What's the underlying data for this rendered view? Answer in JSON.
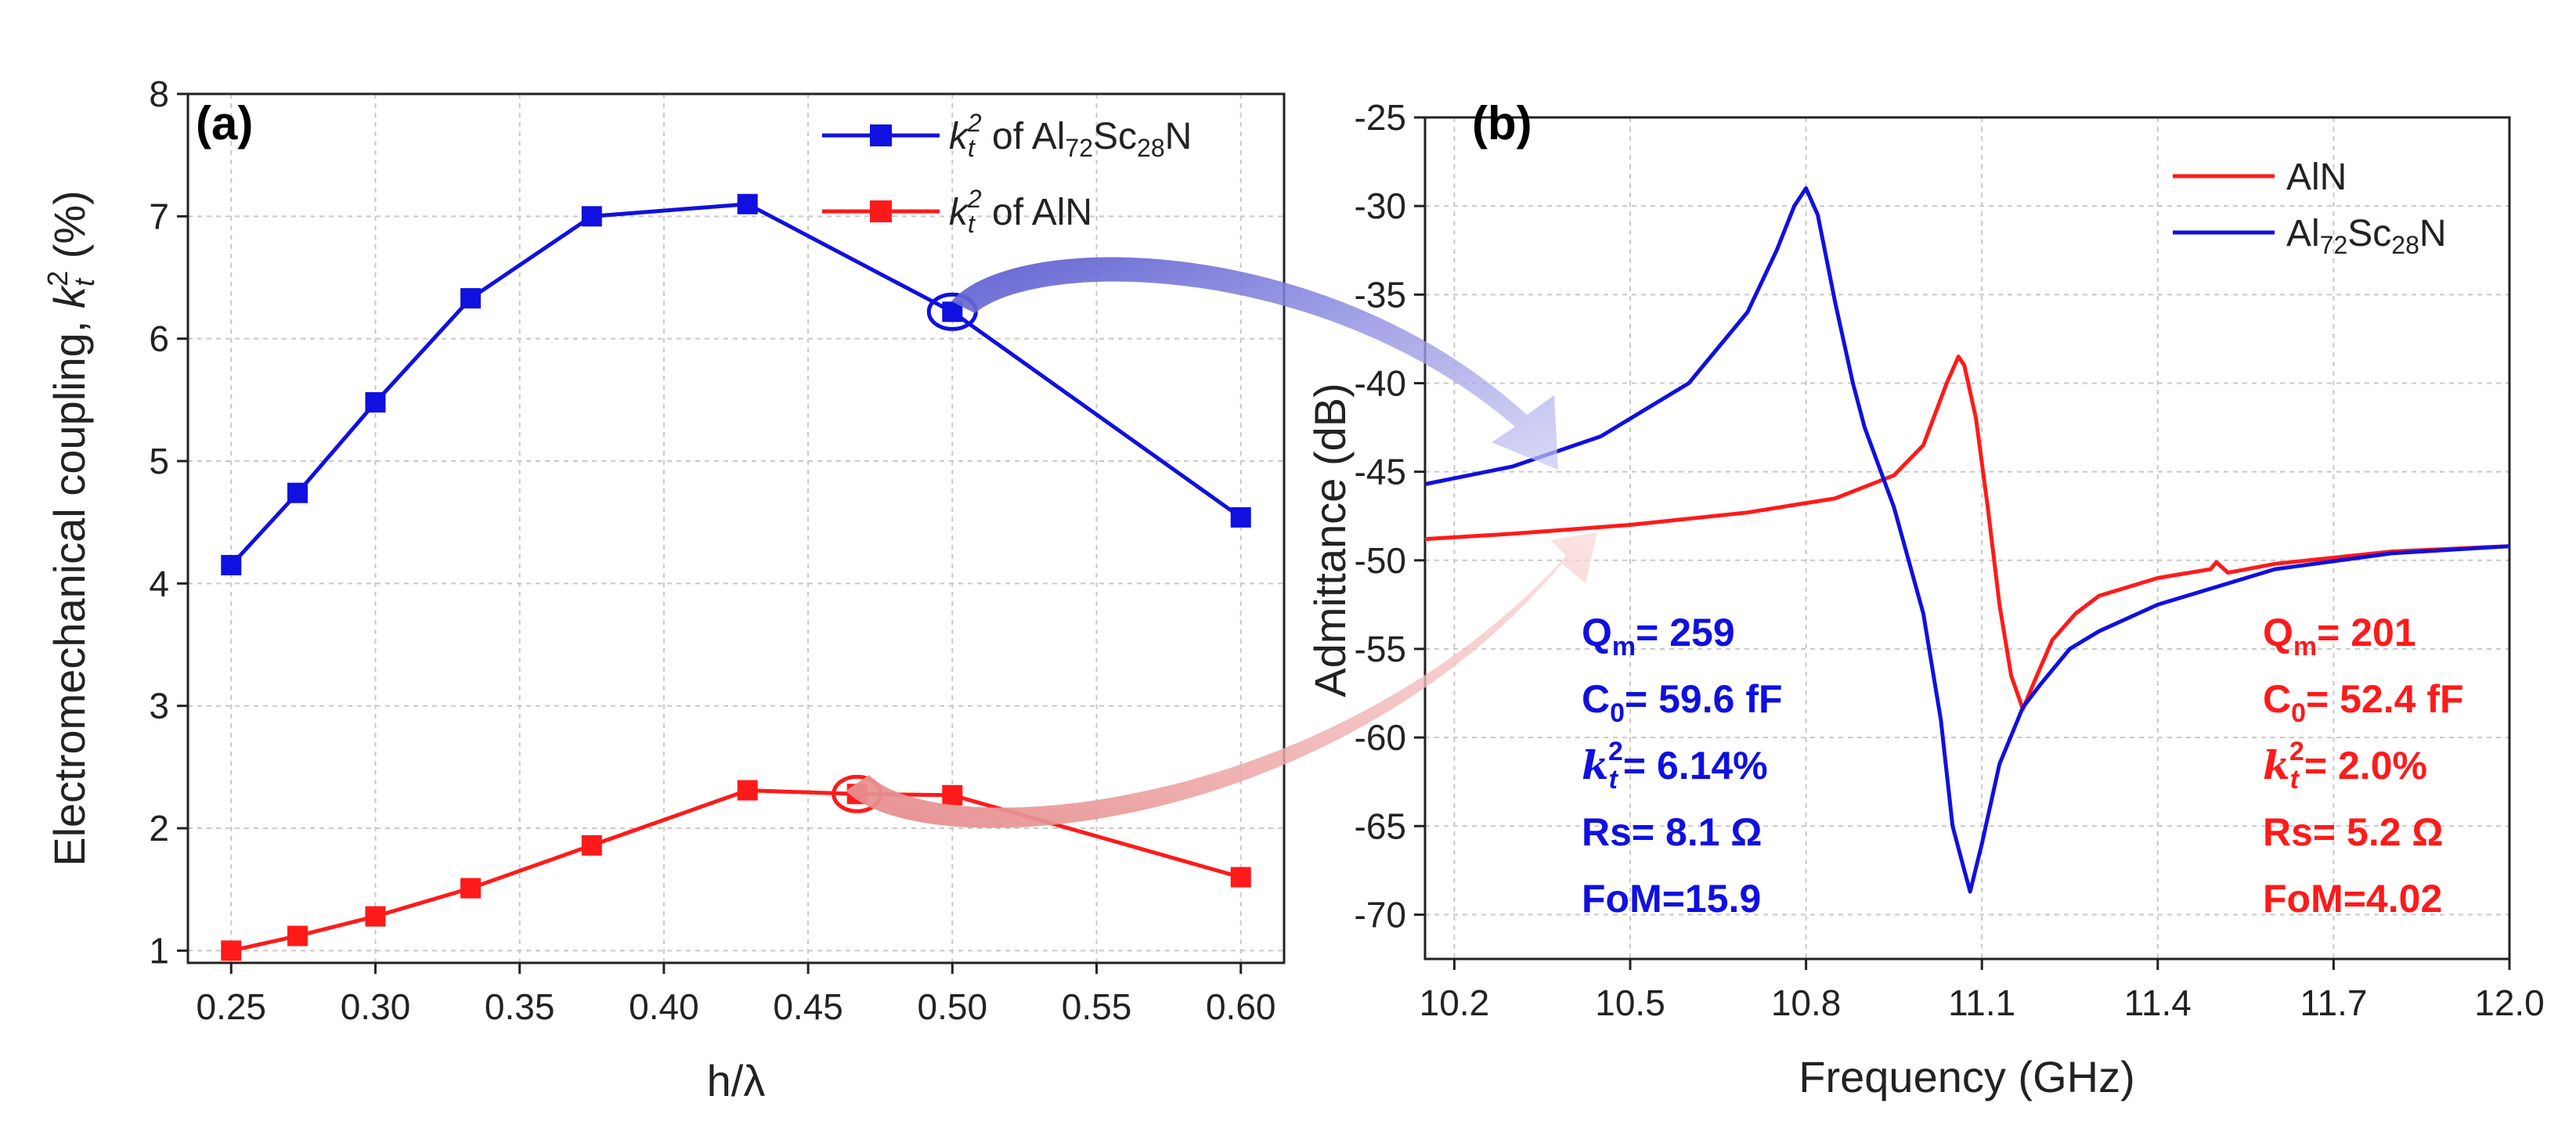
{
  "colors": {
    "blue": "#1010e0",
    "red": "#ff1a1a",
    "text": "#222222"
  },
  "chart_data": [
    {
      "type": "line",
      "panel_label": "(a)",
      "xlabel": "h/λ",
      "ylabel_text": "Electromechanical coupling, ",
      "ylabel_k": "k",
      "ylabel_sub": "t",
      "ylabel_sup": "2",
      "ylabel_unit": " (%)",
      "xlim": [
        0.235,
        0.615
      ],
      "ylim": [
        0.9,
        8.0
      ],
      "xticks": [
        0.25,
        0.3,
        0.35,
        0.4,
        0.45,
        0.5,
        0.55,
        0.6
      ],
      "xtick_labels": [
        "0.25",
        "0.30",
        "0.35",
        "0.40",
        "0.45",
        "0.50",
        "0.55",
        "0.60"
      ],
      "yticks": [
        1,
        2,
        3,
        4,
        5,
        6,
        7,
        8
      ],
      "ytick_labels": [
        "1",
        "2",
        "3",
        "4",
        "5",
        "6",
        "7",
        "8"
      ],
      "series": [
        {
          "name": "k_t^2 of Al72Sc28N",
          "legend_k": "k",
          "legend_sub": "t",
          "legend_sup": "2",
          "legend_text": " of Al",
          "legend_n1": "72",
          "legend_sc": "Sc",
          "legend_n2": "28",
          "legend_end": "N",
          "color": "#1010e0",
          "x": [
            0.25,
            0.273,
            0.3,
            0.333,
            0.375,
            0.429,
            0.5,
            0.6
          ],
          "y": [
            4.15,
            4.74,
            5.48,
            6.33,
            7.0,
            7.1,
            6.22,
            4.54
          ]
        },
        {
          "name": "k_t^2 of AlN",
          "legend_k": "k",
          "legend_sub": "t",
          "legend_sup": "2",
          "legend_text": " of AlN",
          "color": "#ff1a1a",
          "x": [
            0.25,
            0.273,
            0.3,
            0.333,
            0.375,
            0.429,
            0.467,
            0.5,
            0.6
          ],
          "y": [
            1.0,
            1.12,
            1.28,
            1.51,
            1.86,
            2.31,
            2.28,
            2.27,
            1.6
          ]
        }
      ],
      "highlight_points": [
        {
          "series": 0,
          "x": 0.5,
          "y": 6.22
        },
        {
          "series": 1,
          "x": 0.467,
          "y": 2.28
        }
      ]
    },
    {
      "type": "line",
      "panel_label": "(b)",
      "xlabel": "Frequency (GHz)",
      "ylabel": "Admittance (dB)",
      "xlim": [
        10.15,
        12.0
      ],
      "ylim": [
        -72.5,
        -25
      ],
      "xticks": [
        10.2,
        10.5,
        10.8,
        11.1,
        11.4,
        11.7,
        12.0
      ],
      "xtick_labels": [
        "10.2",
        "10.5",
        "10.8",
        "11.1",
        "11.4",
        "11.7",
        "12.0"
      ],
      "yticks": [
        -25,
        -30,
        -35,
        -40,
        -45,
        -50,
        -55,
        -60,
        -65,
        -70
      ],
      "ytick_labels": [
        "-25",
        "-30",
        "-35",
        "-40",
        "-45",
        "-50",
        "-55",
        "-60",
        "-65",
        "-70"
      ],
      "series": [
        {
          "name": "AlN",
          "legend_text": "AlN",
          "color": "#ff1a1a",
          "x": [
            10.15,
            10.3,
            10.5,
            10.7,
            10.85,
            10.95,
            11.0,
            11.04,
            11.06,
            11.07,
            11.09,
            11.11,
            11.13,
            11.15,
            11.17,
            11.19,
            11.22,
            11.26,
            11.3,
            11.4,
            11.49,
            11.5,
            11.52,
            11.6,
            11.8,
            12.0
          ],
          "y": [
            -48.8,
            -48.5,
            -48.0,
            -47.3,
            -46.5,
            -45.2,
            -43.5,
            -40.0,
            -38.5,
            -39.0,
            -42.0,
            -47.0,
            -52.5,
            -56.5,
            -58.4,
            -56.8,
            -54.5,
            -53.0,
            -52.0,
            -51.0,
            -50.5,
            -50.1,
            -50.7,
            -50.2,
            -49.5,
            -49.2
          ]
        },
        {
          "name": "Al72Sc28N",
          "legend_text": "Al",
          "legend_n1": "72",
          "legend_sc": "Sc",
          "legend_n2": "28",
          "legend_end": "N",
          "color": "#1010e0",
          "x": [
            10.15,
            10.3,
            10.45,
            10.6,
            10.7,
            10.75,
            10.78,
            10.8,
            10.82,
            10.85,
            10.88,
            10.9,
            10.95,
            11.0,
            11.03,
            11.05,
            11.07,
            11.08,
            11.1,
            11.13,
            11.17,
            11.2,
            11.25,
            11.3,
            11.4,
            11.6,
            11.8,
            12.0
          ],
          "y": [
            -45.7,
            -44.7,
            -43.0,
            -40.0,
            -36.0,
            -32.5,
            -30.0,
            -29.0,
            -30.5,
            -35.5,
            -40.0,
            -42.5,
            -47.0,
            -53.0,
            -59.0,
            -65.0,
            -67.5,
            -68.7,
            -66.0,
            -61.5,
            -58.3,
            -57.0,
            -55.0,
            -54.0,
            -52.5,
            -50.5,
            -49.6,
            -49.2
          ]
        }
      ]
    }
  ],
  "annotations": {
    "blue": {
      "qm_q": "Q",
      "qm_sub": "m",
      "qm_val": "= 259",
      "c0_c": "C",
      "c0_sub": "0",
      "c0_val": "= 59.6 fF",
      "k_k": "k",
      "k_sub": "t",
      "k_sup": "2",
      "k_val": "= 6.14%",
      "rs": "Rs= 8.1 Ω",
      "fom": "FoM=15.9"
    },
    "red": {
      "qm_q": "Q",
      "qm_sub": "m",
      "qm_val": "= 201",
      "c0_c": "C",
      "c0_sub": "0",
      "c0_val": "= 52.4 fF",
      "k_k": "k",
      "k_sub": "t",
      "k_sup": "2",
      "k_val": "= 2.0%",
      "rs": "Rs= 5.2 Ω",
      "fom": "FoM=4.02"
    }
  }
}
